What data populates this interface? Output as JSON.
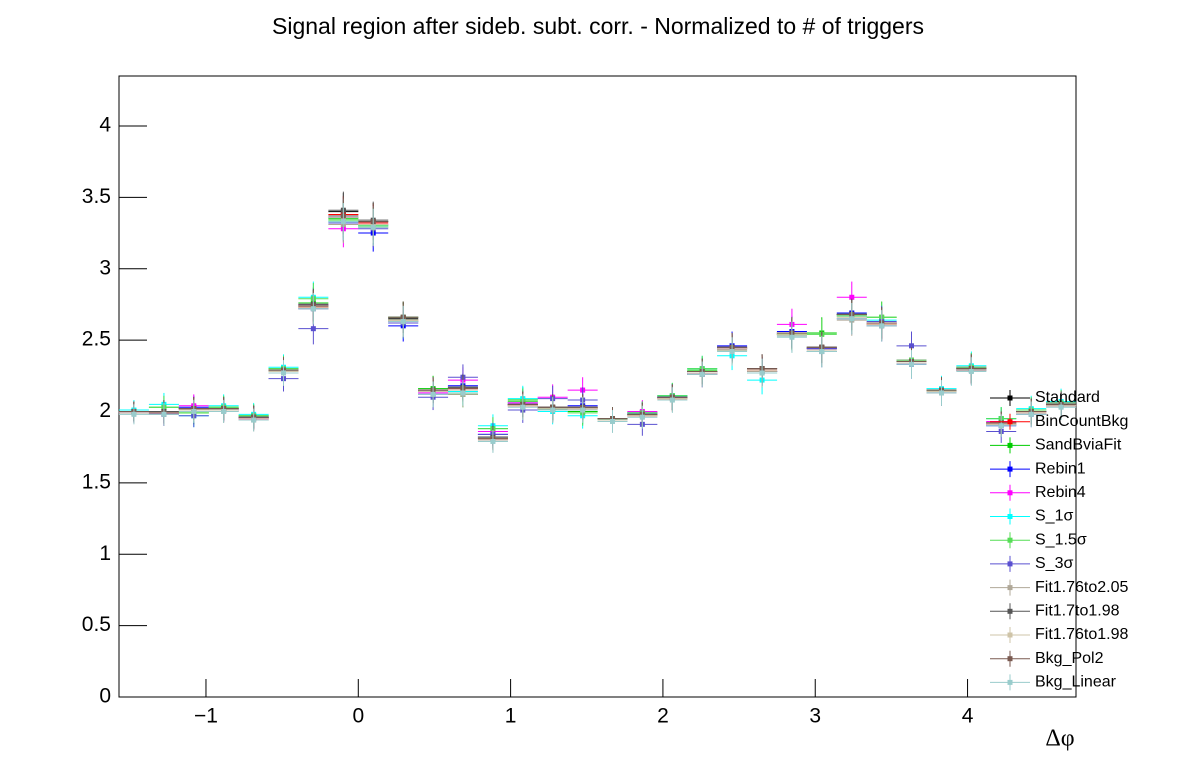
{
  "chart_data": {
    "type": "errorbar",
    "title": "Signal region after sideb. subt. corr. - Normalized to # of triggers",
    "x_label": "Δφ",
    "x": [
      -1.473,
      -1.276,
      -1.08,
      -0.884,
      -0.687,
      -0.491,
      -0.295,
      -0.098,
      0.098,
      0.295,
      0.491,
      0.687,
      0.884,
      1.08,
      1.276,
      1.473,
      1.669,
      1.865,
      2.062,
      2.258,
      2.454,
      2.651,
      2.847,
      3.043,
      3.24,
      3.436,
      3.632,
      3.829,
      4.025,
      4.221,
      4.418,
      4.614
    ],
    "errors": [
      0.07,
      0.08,
      0.08,
      0.08,
      0.08,
      0.09,
      0.11,
      0.13,
      0.13,
      0.11,
      0.09,
      0.09,
      0.08,
      0.09,
      0.09,
      0.09,
      0.08,
      0.08,
      0.09,
      0.09,
      0.1,
      0.1,
      0.11,
      0.11,
      0.11,
      0.11,
      0.1,
      0.09,
      0.1,
      0.08,
      0.09,
      0.09
    ],
    "xlim": [
      -1.571,
      4.712
    ],
    "ylim": [
      0,
      4.35
    ],
    "xticks": [
      {
        "value": -1,
        "label": "−1"
      },
      0,
      1,
      2,
      3,
      4
    ],
    "yticks": [
      0,
      0.5,
      1,
      1.5,
      2,
      2.5,
      3,
      3.5,
      4
    ],
    "legend": "right",
    "series": [
      {
        "name": "Standard",
        "color": "#000000",
        "values": [
          2.0,
          2.0,
          2.02,
          2.02,
          1.96,
          2.29,
          2.74,
          3.4,
          3.33,
          2.65,
          2.15,
          2.17,
          1.82,
          2.05,
          2.03,
          2.03,
          1.95,
          1.98,
          2.1,
          2.28,
          2.45,
          2.3,
          2.55,
          2.45,
          2.68,
          2.62,
          2.35,
          2.15,
          2.3,
          1.92,
          2.0,
          2.05
        ]
      },
      {
        "name": "BinCountBkg",
        "color": "#ff0000",
        "values": [
          2.0,
          1.99,
          2.02,
          2.01,
          1.95,
          2.28,
          2.73,
          3.38,
          3.32,
          2.64,
          2.14,
          2.16,
          1.81,
          2.04,
          2.02,
          2.02,
          1.94,
          1.97,
          2.09,
          2.27,
          2.44,
          2.29,
          2.54,
          2.44,
          2.67,
          2.61,
          2.34,
          2.14,
          2.29,
          1.91,
          1.99,
          2.04
        ]
      },
      {
        "name": "SandBviaFit",
        "color": "#00cc00",
        "values": [
          2.0,
          2.03,
          1.99,
          2.03,
          1.97,
          2.3,
          2.76,
          3.35,
          3.3,
          2.66,
          2.16,
          2.12,
          1.88,
          2.08,
          2.02,
          2.0,
          1.95,
          1.99,
          2.11,
          2.29,
          2.44,
          2.28,
          2.54,
          2.55,
          2.68,
          2.66,
          2.36,
          2.14,
          2.31,
          1.95,
          2.01,
          2.06
        ]
      },
      {
        "name": "Rebin1",
        "color": "#0000ff",
        "values": [
          2.0,
          1.98,
          2.03,
          2.01,
          1.96,
          2.27,
          2.72,
          3.36,
          3.25,
          2.6,
          2.12,
          2.18,
          1.84,
          2.06,
          2.02,
          2.04,
          1.94,
          1.99,
          2.1,
          2.27,
          2.46,
          2.28,
          2.56,
          2.44,
          2.69,
          2.6,
          2.33,
          2.14,
          2.29,
          1.9,
          2.0,
          2.06
        ]
      },
      {
        "name": "Rebin4",
        "color": "#ff00ff",
        "values": [
          1.99,
          1.98,
          2.04,
          2.01,
          1.95,
          2.28,
          2.75,
          3.28,
          3.31,
          2.63,
          2.13,
          2.22,
          1.86,
          2.06,
          2.1,
          2.15,
          1.94,
          2.0,
          2.1,
          2.26,
          2.44,
          2.28,
          2.61,
          2.42,
          2.8,
          2.62,
          2.36,
          2.14,
          2.31,
          1.93,
          2.0,
          2.06
        ]
      },
      {
        "name": "S_1σ",
        "color": "#00ffff",
        "values": [
          2.01,
          2.05,
          1.97,
          2.04,
          1.98,
          2.31,
          2.8,
          3.33,
          3.3,
          2.62,
          2.12,
          2.14,
          1.9,
          2.09,
          2.0,
          1.97,
          1.95,
          1.98,
          2.11,
          2.3,
          2.39,
          2.22,
          2.53,
          2.42,
          2.67,
          2.64,
          2.35,
          2.16,
          2.32,
          1.95,
          2.02,
          2.07
        ]
      },
      {
        "name": "S_1.5σ",
        "color": "#55dd55",
        "values": [
          2.0,
          2.03,
          1.99,
          2.03,
          1.97,
          2.3,
          2.79,
          3.34,
          3.3,
          2.64,
          2.14,
          2.12,
          1.88,
          2.07,
          2.02,
          1.99,
          1.95,
          1.99,
          2.11,
          2.3,
          2.43,
          2.27,
          2.54,
          2.54,
          2.67,
          2.66,
          2.36,
          2.15,
          2.31,
          1.95,
          2.01,
          2.06
        ]
      },
      {
        "name": "S_3σ",
        "color": "#5a50d0",
        "values": [
          1.99,
          1.98,
          1.97,
          2.01,
          1.96,
          2.23,
          2.58,
          3.32,
          3.28,
          2.62,
          2.1,
          2.24,
          1.84,
          2.01,
          2.09,
          2.08,
          1.94,
          1.91,
          2.1,
          2.26,
          2.45,
          2.28,
          2.55,
          2.44,
          2.65,
          2.63,
          2.46,
          2.13,
          2.29,
          1.86,
          1.98,
          2.04
        ]
      },
      {
        "name": "Fit1.76to2.05",
        "color": "#b0a898",
        "values": [
          1.99,
          1.98,
          2.01,
          2.0,
          1.94,
          2.27,
          2.72,
          3.31,
          3.29,
          2.63,
          2.12,
          2.12,
          1.8,
          2.04,
          2.01,
          2.02,
          1.94,
          1.97,
          2.09,
          2.26,
          2.43,
          2.28,
          2.53,
          2.42,
          2.64,
          2.6,
          2.34,
          2.13,
          2.29,
          1.91,
          1.99,
          2.04
        ]
      },
      {
        "name": "Fit1.7to1.98",
        "color": "#555555",
        "values": [
          2.0,
          2.0,
          2.02,
          2.02,
          1.96,
          2.29,
          2.75,
          3.41,
          3.34,
          2.66,
          2.15,
          2.17,
          1.82,
          2.05,
          2.03,
          2.03,
          1.95,
          1.98,
          2.1,
          2.28,
          2.45,
          2.3,
          2.55,
          2.45,
          2.68,
          2.62,
          2.35,
          2.15,
          2.3,
          1.92,
          2.0,
          2.05
        ]
      },
      {
        "name": "Fit1.76to1.98",
        "color": "#cfc4a8",
        "values": [
          1.99,
          1.99,
          2.01,
          2.01,
          1.95,
          2.28,
          2.73,
          3.36,
          3.31,
          2.64,
          2.14,
          2.15,
          1.81,
          2.04,
          2.02,
          2.02,
          1.94,
          1.97,
          2.09,
          2.27,
          2.44,
          2.29,
          2.54,
          2.43,
          2.66,
          2.61,
          2.34,
          2.14,
          2.29,
          1.91,
          1.99,
          2.04
        ]
      },
      {
        "name": "Bkg_Pol2",
        "color": "#7a5a50",
        "values": [
          2.0,
          1.99,
          2.02,
          2.02,
          1.96,
          2.29,
          2.74,
          3.37,
          3.33,
          2.66,
          2.15,
          2.16,
          1.81,
          2.05,
          2.03,
          2.03,
          1.95,
          1.98,
          2.1,
          2.28,
          2.45,
          2.3,
          2.55,
          2.45,
          2.68,
          2.62,
          2.35,
          2.15,
          2.3,
          1.92,
          2.0,
          2.05
        ]
      },
      {
        "name": "Bkg_Linear",
        "color": "#99cccc",
        "values": [
          1.98,
          1.98,
          2.0,
          2.0,
          1.94,
          2.27,
          2.72,
          3.33,
          3.29,
          2.63,
          2.12,
          2.13,
          1.79,
          2.03,
          2.01,
          2.01,
          1.93,
          1.96,
          2.08,
          2.26,
          2.42,
          2.27,
          2.52,
          2.42,
          2.65,
          2.6,
          2.33,
          2.13,
          2.28,
          1.9,
          1.98,
          2.03
        ]
      }
    ]
  }
}
